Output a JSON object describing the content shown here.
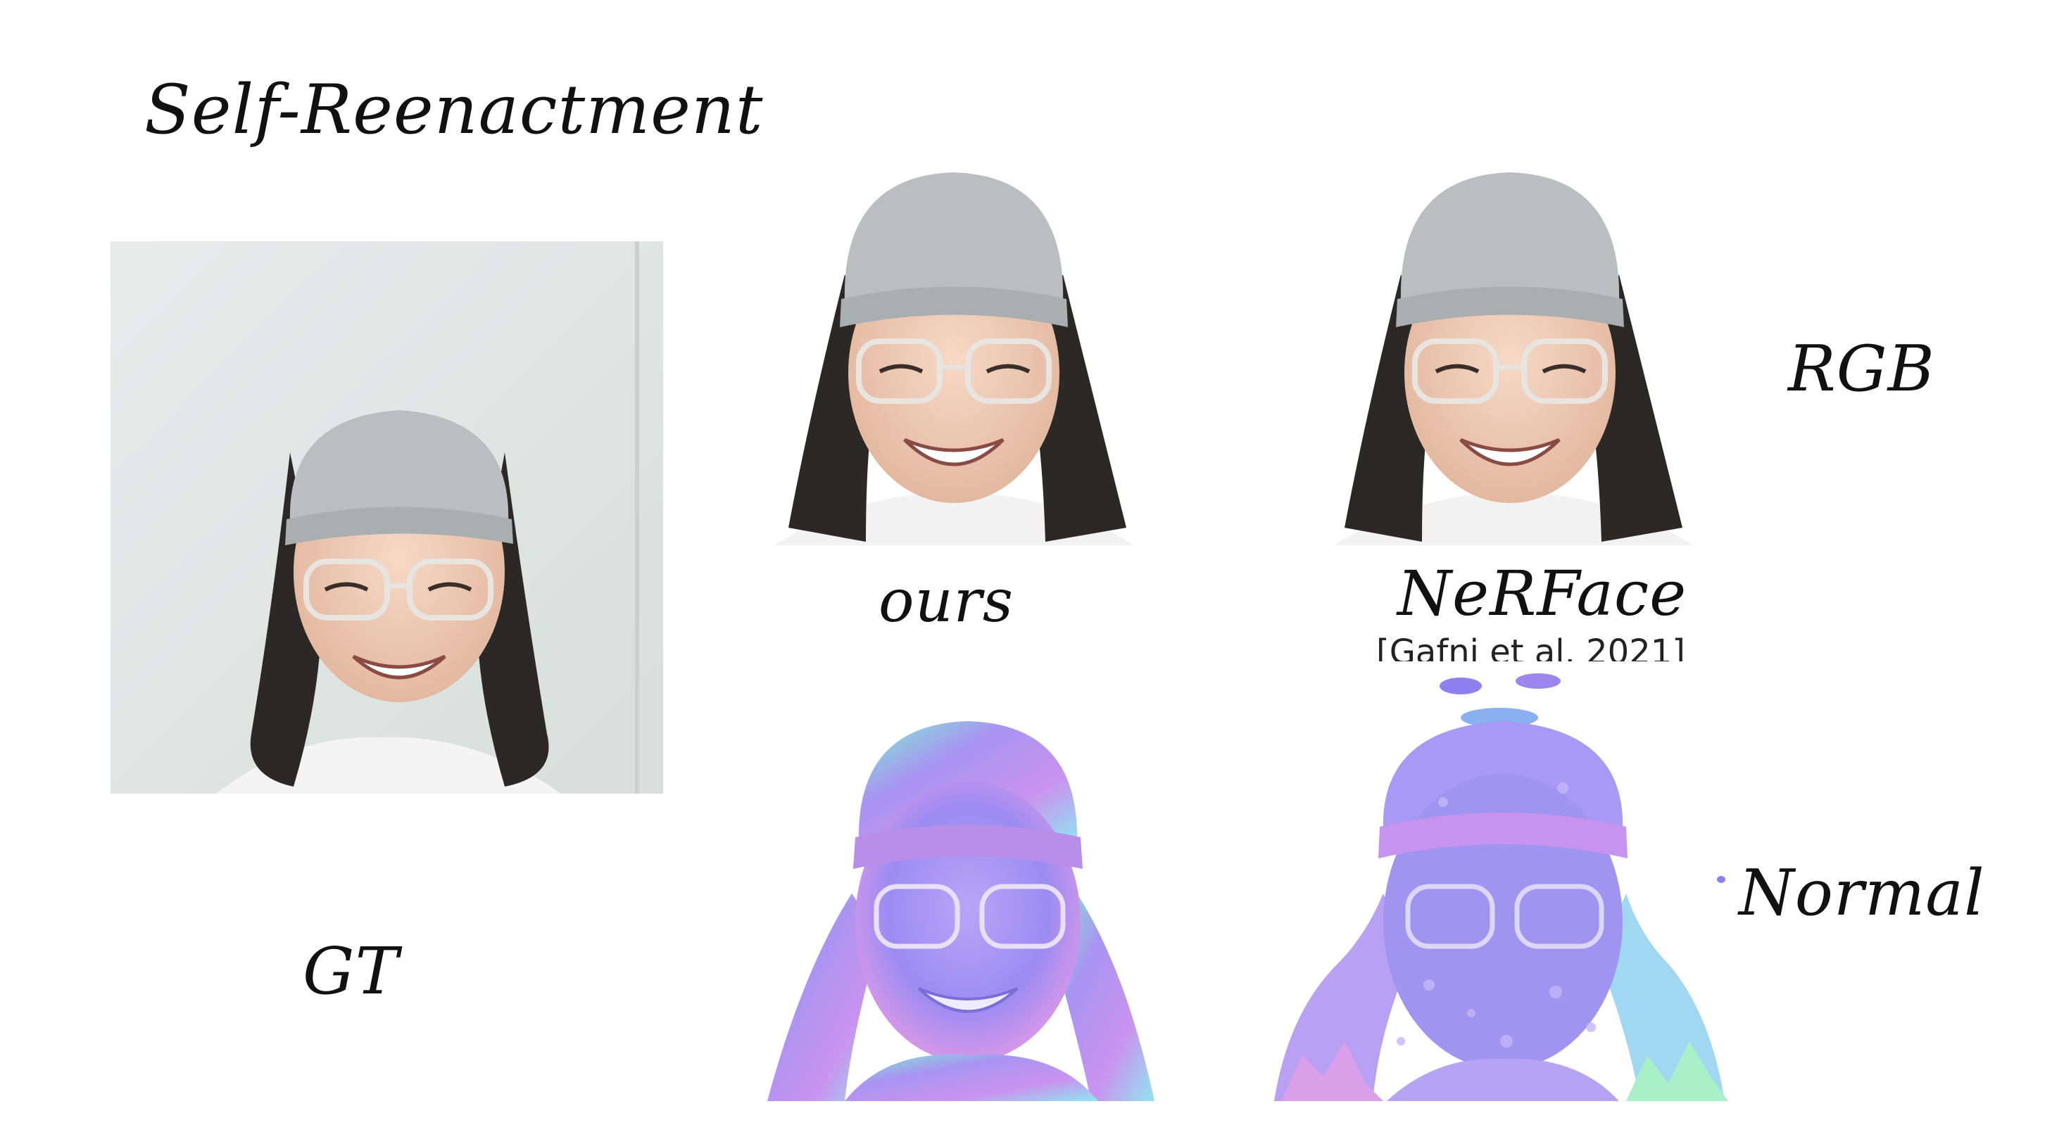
{
  "title": "Self-Reenactment",
  "labels": {
    "gt": "GT",
    "ours": "ours",
    "nerface": "NeRFace",
    "citation": "[Gafni et al. 2021]",
    "rgb": "RGB",
    "normal": "Normal"
  },
  "colors": {
    "background": "#ffffff",
    "gt_wall": "#dfe6e4",
    "beanie": "#b7bcbf",
    "hair": "#2a2726",
    "skin": "#f0cdb8",
    "normal_purple": "#9f8ef0",
    "normal_green": "#8ef0b8",
    "normal_pink": "#f08ee0"
  }
}
